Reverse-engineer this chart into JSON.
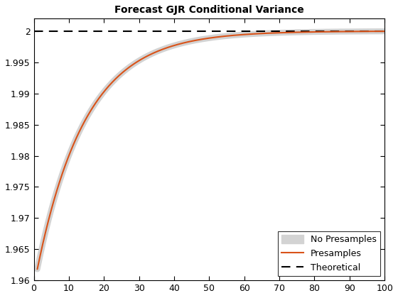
{
  "title": "Forecast GJR Conditional Variance",
  "xlim": [
    0,
    100
  ],
  "ylim": [
    1.96,
    2.002
  ],
  "xticks": [
    0,
    10,
    20,
    30,
    40,
    50,
    60,
    70,
    80,
    90,
    100
  ],
  "yticks": [
    1.96,
    1.965,
    1.97,
    1.975,
    1.98,
    1.985,
    1.99,
    1.995,
    2.0
  ],
  "ytick_labels": [
    "1.96",
    "1.965",
    "1.97",
    "1.975",
    "1.98",
    "1.985",
    "1.99",
    "1.995",
    "2"
  ],
  "theoretical_value": 2.0,
  "no_presamples_color": "#d3d3d3",
  "presamples_color": "#d95319",
  "theoretical_color": "#000000",
  "curve_start": 1.9618,
  "convergence_rate": 0.072,
  "legend_loc": "lower right",
  "background_color": "#ffffff",
  "presamples_lw": 1.5,
  "theoretical_lw": 1.5,
  "gray_lw": 6.0,
  "title_fontsize": 10,
  "tick_fontsize": 9
}
